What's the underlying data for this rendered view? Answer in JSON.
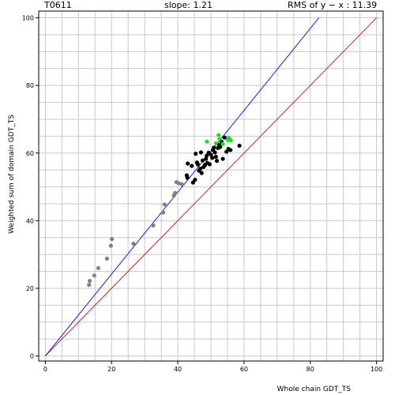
{
  "header": {
    "target_id": "T0611",
    "slope_text": "slope: 1.21",
    "rms_text": "RMS of  y − x : 11.39"
  },
  "colors": {
    "grid": "#c8c8c8",
    "diagonal": "#cc2020",
    "fit_line": "#1a1aff",
    "points_gray": "#808080",
    "points_black": "#000000",
    "points_green": "#22dd22"
  },
  "chart_data": {
    "type": "scatter",
    "xlabel": "Whole chain GDT_TS",
    "ylabel": "Weighted sum of domain GDT_TS",
    "xlim": [
      -2,
      102
    ],
    "ylim": [
      -1.5,
      102
    ],
    "xticks": [
      0,
      20,
      40,
      60,
      80,
      100
    ],
    "yticks": [
      0,
      20,
      40,
      60,
      80,
      100
    ],
    "grid": true,
    "reference_line": {
      "x": [
        0,
        100
      ],
      "y": [
        0,
        100
      ]
    },
    "fit_line": {
      "slope": 1.21,
      "x": [
        0,
        82.6
      ],
      "y": [
        0,
        100
      ]
    },
    "series": [
      {
        "color": "gray",
        "points": [
          [
            13.2,
            21
          ],
          [
            13.4,
            22.2
          ],
          [
            14.8,
            23.8
          ],
          [
            16,
            26
          ],
          [
            18.6,
            28.8
          ],
          [
            19.8,
            32.6
          ],
          [
            20.1,
            34.6
          ],
          [
            26.6,
            33.2
          ],
          [
            32.6,
            38.6
          ],
          [
            35.6,
            42.4
          ],
          [
            36,
            44.8
          ],
          [
            38.8,
            47.4
          ],
          [
            39.2,
            48.2
          ],
          [
            39.6,
            51.4
          ],
          [
            40.2,
            51.1
          ],
          [
            41.2,
            50.8
          ]
        ]
      },
      {
        "color": "black",
        "points": [
          [
            42.7,
            53.4
          ],
          [
            42.9,
            52.7
          ],
          [
            43,
            56.9
          ],
          [
            44.2,
            56.2
          ],
          [
            44.6,
            51.3
          ],
          [
            45.2,
            52.1
          ],
          [
            45.4,
            59.8
          ],
          [
            45.8,
            57.2
          ],
          [
            46.1,
            56.6
          ],
          [
            46.4,
            54.8
          ],
          [
            46.8,
            55.4
          ],
          [
            47,
            60.2
          ],
          [
            47.2,
            54.1
          ],
          [
            47.5,
            57.8
          ],
          [
            47.8,
            55.9
          ],
          [
            48.2,
            56.5
          ],
          [
            48.5,
            58.3
          ],
          [
            48.7,
            59.2
          ],
          [
            48.9,
            57.1
          ],
          [
            49.3,
            60.1
          ],
          [
            49.6,
            56.7
          ],
          [
            50,
            59.5
          ],
          [
            50.4,
            58.6
          ],
          [
            50.6,
            60.9
          ],
          [
            50.9,
            61.6
          ],
          [
            51.2,
            60.2
          ],
          [
            51.5,
            58.9
          ],
          [
            51.8,
            57.7
          ],
          [
            52.1,
            61.5
          ],
          [
            52.5,
            62.4
          ],
          [
            52.8,
            61.8
          ],
          [
            53.2,
            63.4
          ],
          [
            53.6,
            58.3
          ],
          [
            54.1,
            64.6
          ],
          [
            54.7,
            60.4
          ],
          [
            55.3,
            61.2
          ],
          [
            55.9,
            60.9
          ],
          [
            58.6,
            62.2
          ]
        ]
      },
      {
        "color": "green",
        "points": [
          [
            48.8,
            63.4
          ],
          [
            51.5,
            62.9
          ],
          [
            52.3,
            65.3
          ],
          [
            52.6,
            64.1
          ],
          [
            53.6,
            62.7
          ],
          [
            55.1,
            63.9
          ],
          [
            55.4,
            64.5
          ],
          [
            56,
            63.8
          ]
        ]
      }
    ]
  }
}
